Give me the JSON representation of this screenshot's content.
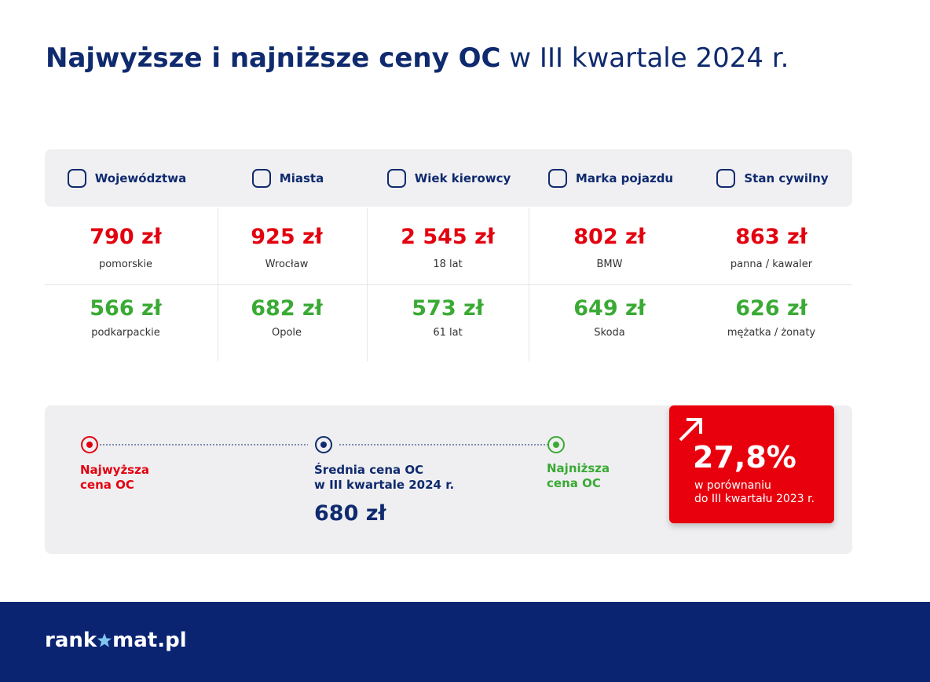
{
  "header": {
    "title_bold": "Najwyższe i najniższe ceny OC",
    "title_rest": "w III kwartale 2024 r."
  },
  "table": {
    "columns": [
      {
        "header": "Województwa",
        "high": "790 zł",
        "high_label": "pomorskie",
        "low": "566 zł",
        "low_label": "podkarpackie"
      },
      {
        "header": "Miasta",
        "high": "925 zł",
        "high_label": "Wrocław",
        "low": "682 zł",
        "low_label": "Opole"
      },
      {
        "header": "Wiek kierowcy",
        "high": "2 545 zł",
        "high_label": "18 lat",
        "low": "573 zł",
        "low_label": "61 lat"
      },
      {
        "header": "Marka pojazdu",
        "high": "802 zł",
        "high_label": "BMW",
        "low": "649 zł",
        "low_label": "Skoda"
      },
      {
        "header": "Stan cywilny",
        "high": "863 zł",
        "high_label": "panna / kawaler",
        "low": "626 zł",
        "low_label": "mężatka / żonaty"
      }
    ]
  },
  "summary": {
    "highest": "Najwyższa\ncena OC",
    "average": "Średnia cena OC\nw III kwartale 2024 r.",
    "average_value": "680 zł",
    "lowest": "Najniższa\ncena OC",
    "change": "27,8%",
    "change_note": "w porównaniu\ndo III kwartału 2023 r."
  },
  "footer": {
    "logo_start": "rank",
    "logo_end": "mat.pl"
  }
}
